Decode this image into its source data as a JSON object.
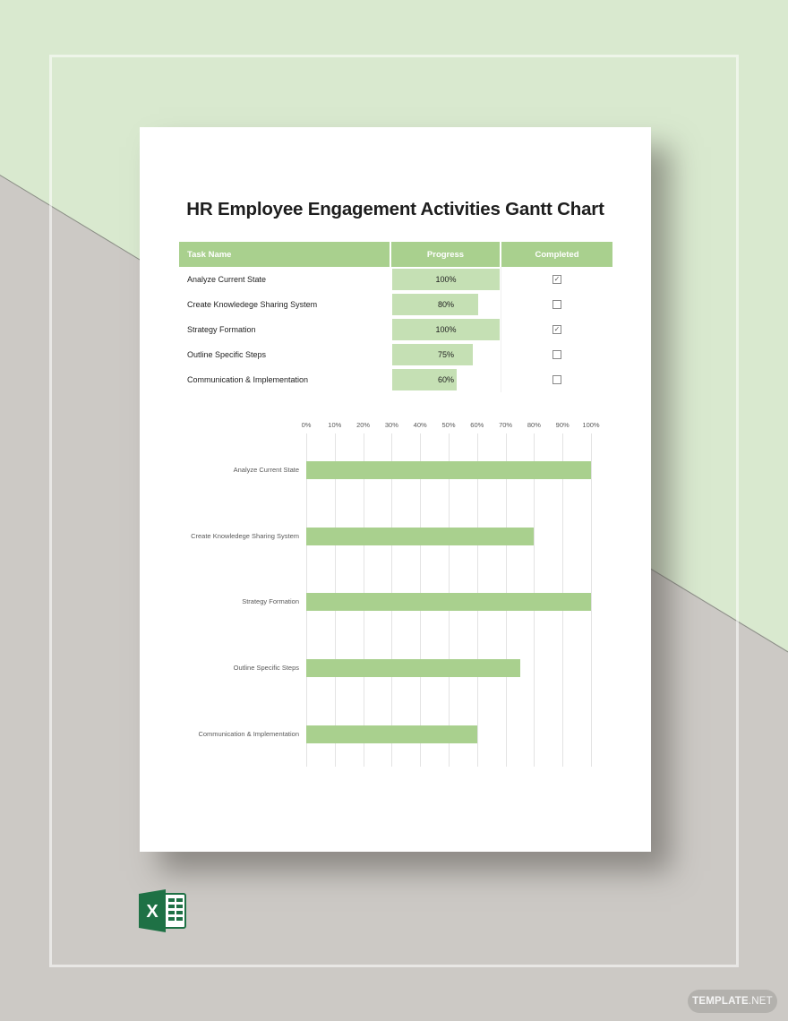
{
  "document": {
    "title": "HR Employee Engagement Activities Gantt Chart",
    "table": {
      "headers": [
        "Task Name",
        "Progress",
        "Completed"
      ],
      "rows": [
        {
          "task": "Analyze Current State",
          "progress": "100%",
          "progress_value": 100,
          "completed": true
        },
        {
          "task": "Create Knowledege Sharing System",
          "progress": "80%",
          "progress_value": 80,
          "completed": false
        },
        {
          "task": "Strategy Formation",
          "progress": "100%",
          "progress_value": 100,
          "completed": true
        },
        {
          "task": "Outline Specific Steps",
          "progress": "75%",
          "progress_value": 75,
          "completed": false
        },
        {
          "task": "Communication & Implementation",
          "progress": "60%",
          "progress_value": 60,
          "completed": false
        }
      ]
    },
    "colors": {
      "header_green": "#a9d08e",
      "progress_fill": "#c5e0b4",
      "bar_green": "#a9d08e"
    }
  },
  "chart_data": {
    "type": "bar",
    "orientation": "horizontal",
    "title": "",
    "categories": [
      "Analyze Current State",
      "Create Knowledege Sharing System",
      "Strategy Formation",
      "Outline Specific Steps",
      "Communication & Implementation"
    ],
    "values": [
      100,
      80,
      100,
      75,
      60
    ],
    "xlabel": "",
    "ylabel": "",
    "xlim": [
      0,
      100
    ],
    "x_tick_labels": [
      "0%",
      "10%",
      "20%",
      "30%",
      "40%",
      "50%",
      "60%",
      "70%",
      "80%",
      "90%",
      "100%"
    ],
    "x_axis_position": "top",
    "grid": true,
    "legend": false
  },
  "branding": {
    "badge_bold": "TEMPLATE",
    "badge_rest": ".NET",
    "file_icon": "excel-icon"
  }
}
